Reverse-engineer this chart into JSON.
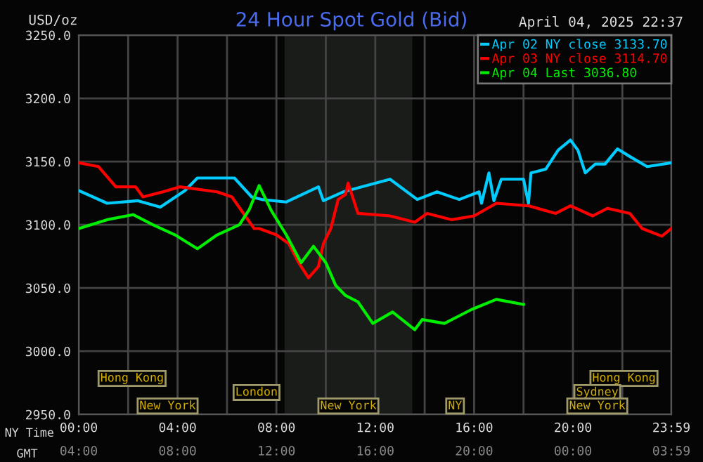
{
  "chart_data": {
    "type": "line",
    "title": "24 Hour Spot Gold (Bid)",
    "subtitle": "April 04, 2025 22:37",
    "ylabel": "USD/oz",
    "xlabel": "NY Time",
    "x2label": "GMT",
    "xlim": [
      0,
      23.983
    ],
    "ylim": [
      2950,
      3250
    ],
    "xticks": [
      {
        "value": 0,
        "label": "00:00"
      },
      {
        "value": 2,
        "label": null
      },
      {
        "value": 4,
        "label": "04:00"
      },
      {
        "value": 6,
        "label": null
      },
      {
        "value": 8,
        "label": "08:00"
      },
      {
        "value": 10,
        "label": null
      },
      {
        "value": 12,
        "label": "12:00"
      },
      {
        "value": 14,
        "label": null
      },
      {
        "value": 16,
        "label": "16:00"
      },
      {
        "value": 18,
        "label": null
      },
      {
        "value": 20,
        "label": "20:00"
      },
      {
        "value": 22,
        "label": null
      },
      {
        "value": 23.983,
        "label": "23:59"
      }
    ],
    "x2lim": [
      "2025-04-04T04:00",
      "2025-04-05T03:59"
    ],
    "x2ticks": [
      {
        "value": "2025-04-04T04:00",
        "label": "04:00"
      },
      {
        "value": "2025-04-04T08:00",
        "label": "08:00"
      },
      {
        "value": "2025-04-04T12:00",
        "label": "12:00"
      },
      {
        "value": "2025-04-04T16:00",
        "label": "16:00"
      },
      {
        "value": "2025-04-04T20:00",
        "label": "20:00"
      },
      {
        "value": "2025-04-05T00:00",
        "label": "00:00"
      },
      {
        "value": "2025-04-05T03:59",
        "label": "03:59"
      }
    ],
    "yticks": [
      {
        "value": 2950,
        "label": "2950.0"
      },
      {
        "value": 3000,
        "label": "3000.0"
      },
      {
        "value": 3050,
        "label": "3050.0"
      },
      {
        "value": 3100,
        "label": "3100.0"
      },
      {
        "value": 3150,
        "label": "3150.0"
      },
      {
        "value": 3200,
        "label": "3200.0"
      },
      {
        "value": 3250,
        "label": "3250.0"
      }
    ],
    "grid": true,
    "legend": "top right",
    "marker": "none",
    "line_style": "solid",
    "bands": [
      {
        "axis": "x",
        "from": 8.33,
        "to": 13.5,
        "label": null,
        "color": "#1a1c1a"
      }
    ],
    "series": [
      {
        "name": "Apr 02 NY close 3133.70",
        "color": "#00ccff",
        "x": [
          0,
          1.15,
          2.4,
          3.3,
          4.3,
          4.8,
          6.3,
          7.0,
          7.4,
          8.4,
          9.7,
          9.9,
          10.7,
          12.6,
          13.7,
          14.5,
          15.4,
          16.2,
          16.3,
          16.6,
          16.8,
          17.1,
          18.0,
          18.2,
          18.3,
          18.9,
          19.4,
          19.9,
          20.2,
          20.5,
          20.9,
          21.3,
          21.8,
          22.3,
          23.0,
          23.98
        ],
        "values": [
          3127,
          3117,
          3119,
          3114,
          3127,
          3137,
          3137,
          3122,
          3120,
          3118,
          3130,
          3119,
          3126,
          3136,
          3120,
          3126,
          3120,
          3126,
          3117,
          3141,
          3119,
          3136,
          3136,
          3117,
          3141,
          3144,
          3159,
          3167,
          3159,
          3141,
          3148,
          3148,
          3160,
          3154,
          3146,
          3149
        ]
      },
      {
        "name": "Apr 03 NY close 3114.70",
        "color": "#ff0000",
        "x": [
          0,
          0.8,
          1.5,
          2.3,
          2.6,
          3.4,
          4.1,
          5.6,
          6.2,
          6.7,
          7.1,
          7.3,
          8.0,
          8.5,
          8.9,
          9.3,
          9.7,
          9.9,
          10.2,
          10.5,
          10.8,
          10.9,
          11.3,
          12.6,
          13.6,
          14.1,
          15.1,
          16.0,
          16.9,
          18.2,
          19.3,
          19.9,
          20.8,
          21.4,
          22.3,
          22.8,
          23.6,
          23.98
        ],
        "values": [
          3149,
          3146,
          3130,
          3130,
          3122,
          3126,
          3130,
          3126,
          3122,
          3108,
          3097,
          3097,
          3092,
          3085,
          3070,
          3058,
          3067,
          3085,
          3097,
          3120,
          3124,
          3133,
          3109,
          3107,
          3102,
          3109,
          3104,
          3107,
          3117,
          3115,
          3109,
          3115,
          3107,
          3113,
          3109,
          3097,
          3091,
          3097
        ]
      },
      {
        "name": "Apr 04 Last 3036.80",
        "color": "#00ee00",
        "x": [
          0,
          1.15,
          2.2,
          3.0,
          3.9,
          4.8,
          5.6,
          6.5,
          6.9,
          7.3,
          7.8,
          8.4,
          9.0,
          9.5,
          10.0,
          10.4,
          10.8,
          11.3,
          11.9,
          12.7,
          13.6,
          13.9,
          14.8,
          15.4,
          15.9,
          16.9,
          18.0
        ],
        "values": [
          3097,
          3104,
          3108,
          3100,
          3092,
          3081,
          3092,
          3100,
          3112,
          3131,
          3111,
          3092,
          3070,
          3083,
          3070,
          3052,
          3044,
          3039,
          3022,
          3031,
          3017,
          3025,
          3022,
          3028,
          3033,
          3041,
          3037
        ]
      }
    ],
    "annotations": [
      "Hong Kong",
      "London",
      "New York",
      "New York",
      "NY",
      "Hong Kong",
      "Sydney",
      "New York"
    ]
  }
}
